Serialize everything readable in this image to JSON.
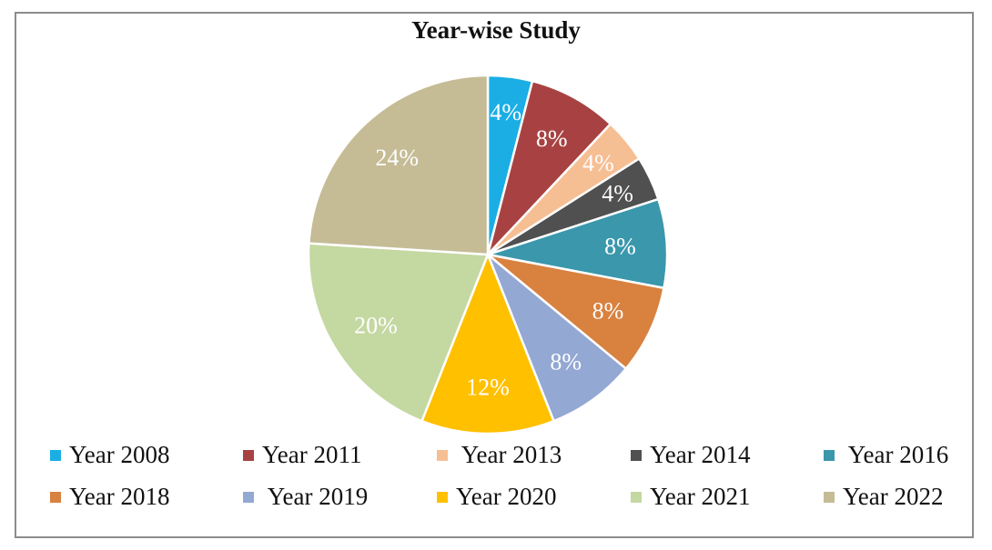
{
  "chart_data": {
    "type": "pie",
    "title": "Year-wise Study",
    "categories": [
      "Year 2008",
      "Year 2011",
      "Year 2013",
      "Year 2014",
      "Year 2016",
      "Year 2018",
      "Year 2019",
      "Year 2020",
      "Year 2021",
      "Year 2022"
    ],
    "legend_labels": [
      "Year 2008",
      "Year 2011",
      " Year 2013",
      "Year 2014",
      " Year 2016",
      "Year 2018",
      " Year 2019",
      "Year 2020",
      "Year 2021",
      "Year 2022"
    ],
    "values": [
      4,
      8,
      4,
      4,
      8,
      8,
      8,
      12,
      20,
      24
    ],
    "data_labels": [
      "4%",
      "8%",
      "4%",
      "4%",
      "8%",
      "8%",
      "8%",
      "12%",
      "20%",
      "24%"
    ],
    "colors": [
      "#1aaee5",
      "#a84242",
      "#f6be93",
      "#505050",
      "#3a97ac",
      "#d9813f",
      "#93a8d3",
      "#ffc000",
      "#c4d8a1",
      "#c5bb95"
    ],
    "legend_position": "bottom",
    "start_angle": "12 o'clock",
    "direction": "clockwise"
  }
}
